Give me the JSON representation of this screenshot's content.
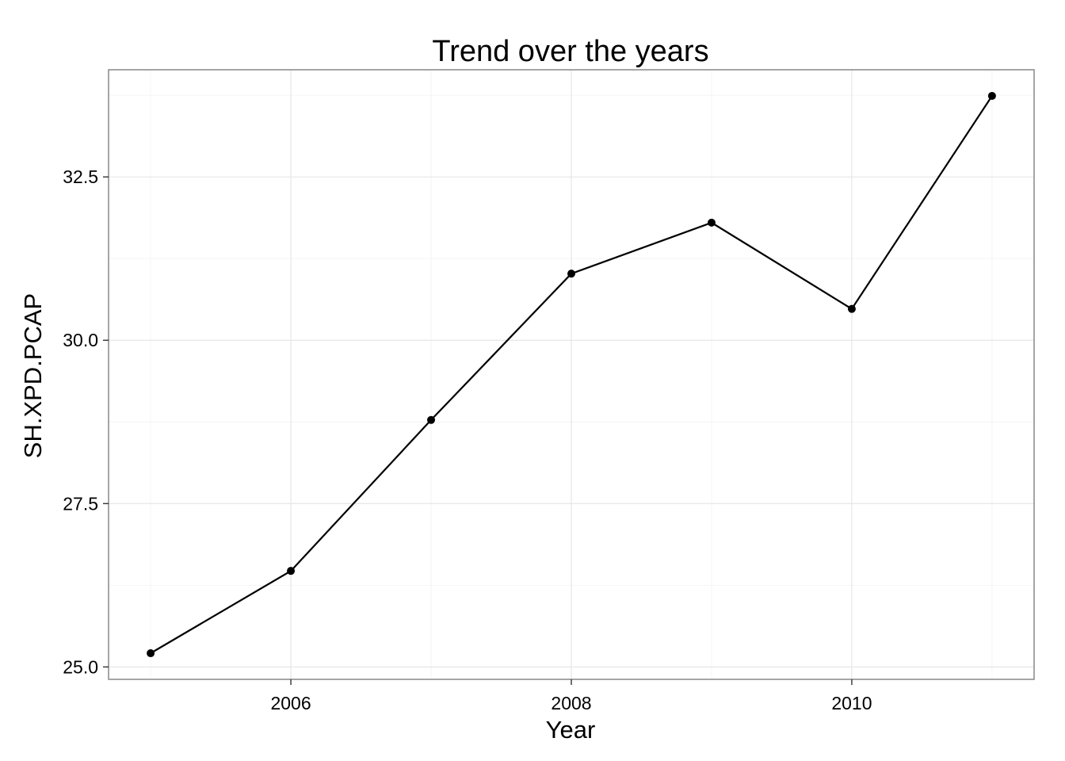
{
  "chart_data": {
    "type": "line",
    "title": "Trend over the years",
    "xlabel": "Year",
    "ylabel": "SH.XPD.PCAP",
    "x": [
      2005,
      2006,
      2007,
      2008,
      2009,
      2010,
      2011
    ],
    "series": [
      {
        "values": [
          25.21,
          26.47,
          28.78,
          31.02,
          31.8,
          30.48,
          33.74
        ]
      }
    ],
    "x_ticks": [
      2006,
      2008,
      2010
    ],
    "x_tick_labels": [
      "2006",
      "2008",
      "2010"
    ],
    "y_ticks": [
      25.0,
      27.5,
      30.0,
      32.5
    ],
    "y_tick_labels": [
      "25.0",
      "27.5",
      "30.0",
      "32.5"
    ],
    "xlim": [
      2004.7,
      2011.3
    ],
    "ylim": [
      24.81,
      34.14
    ],
    "grid": true,
    "legend": "none",
    "colors": {
      "line": "#000000",
      "grid": "#e6e6e6",
      "border": "#7f7f7f"
    }
  }
}
